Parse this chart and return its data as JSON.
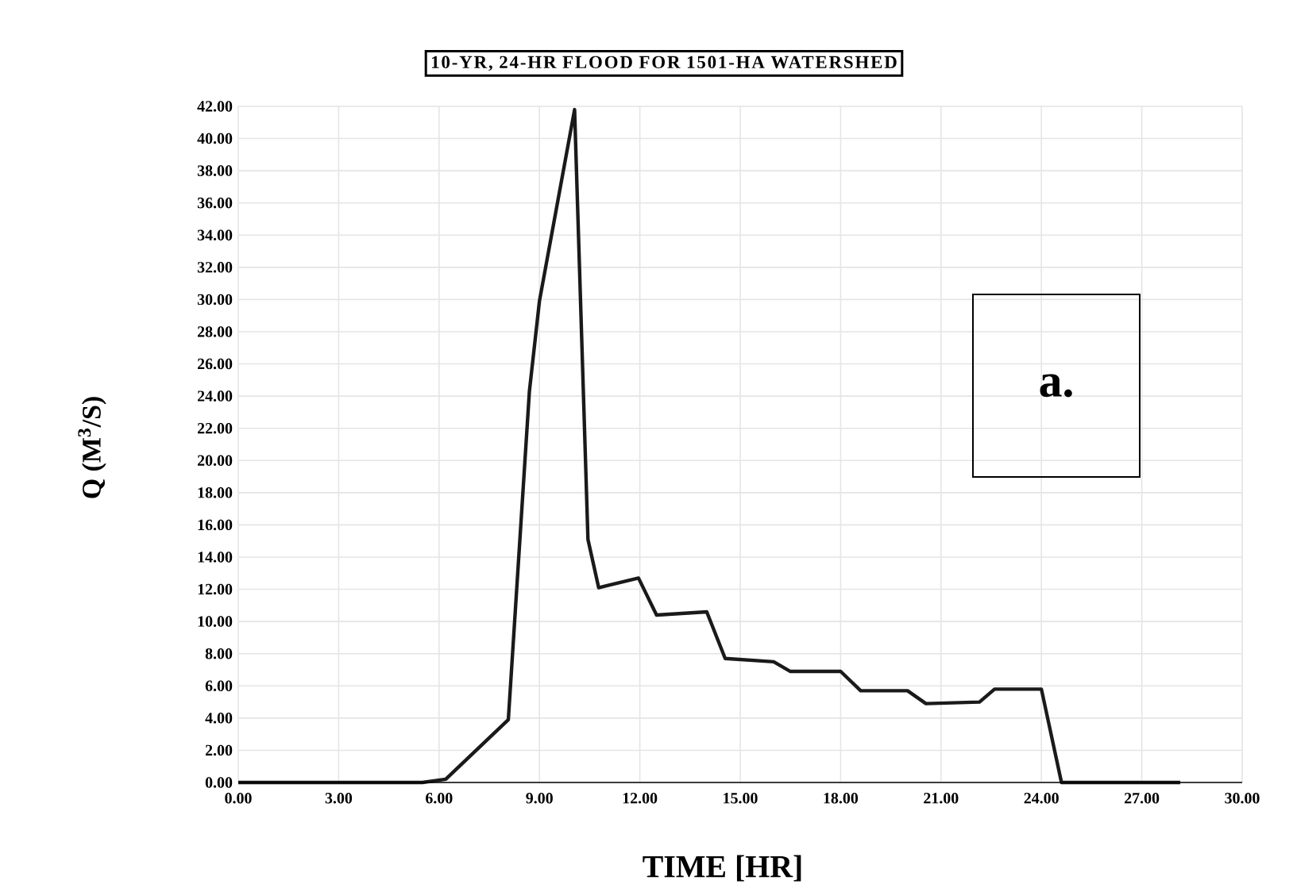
{
  "chart_data": {
    "type": "line",
    "title": "10-YR, 24-HR FLOOD FOR 1501-HA WATERSHED",
    "xlabel": "TIME [HR]",
    "ylabel": "Q (M$^{3}$/S)",
    "annotations": [
      "a."
    ],
    "x": [
      0,
      5.5,
      6.2,
      8.07,
      8.7,
      9.0,
      10.05,
      10.45,
      10.77,
      11.96,
      12.5,
      14.0,
      14.55,
      16.0,
      16.5,
      18.0,
      18.6,
      20.0,
      20.55,
      22.15,
      22.6,
      24.0,
      24.6,
      28.15
    ],
    "series": [
      {
        "color": "#1a1a1a",
        "values": [
          0,
          0,
          0.2,
          3.9,
          24.3,
          29.9,
          41.8,
          15.1,
          12.1,
          12.7,
          10.4,
          10.6,
          7.7,
          7.5,
          6.9,
          6.9,
          5.7,
          5.7,
          4.9,
          5.0,
          5.8,
          5.8,
          0,
          0
        ]
      }
    ],
    "xlim": [
      0,
      30
    ],
    "ylim": [
      0,
      42
    ],
    "xticks": [
      {
        "value": 0,
        "label": "0.00"
      },
      {
        "value": 3,
        "label": "3.00"
      },
      {
        "value": 6,
        "label": "6.00"
      },
      {
        "value": 9,
        "label": "9.00"
      },
      {
        "value": 12,
        "label": "12.00"
      },
      {
        "value": 15,
        "label": "15.00"
      },
      {
        "value": 18,
        "label": "18.00"
      },
      {
        "value": 21,
        "label": "21.00"
      },
      {
        "value": 24,
        "label": "24.00"
      },
      {
        "value": 27,
        "label": "27.00"
      },
      {
        "value": 30,
        "label": "30.00"
      }
    ],
    "yticks": [
      {
        "value": 0,
        "label": "0.00"
      },
      {
        "value": 2,
        "label": "2.00"
      },
      {
        "value": 4,
        "label": "4.00"
      },
      {
        "value": 6,
        "label": "6.00"
      },
      {
        "value": 8,
        "label": "8.00"
      },
      {
        "value": 10,
        "label": "10.00"
      },
      {
        "value": 12,
        "label": "12.00"
      },
      {
        "value": 14,
        "label": "14.00"
      },
      {
        "value": 16,
        "label": "16.00"
      },
      {
        "value": 18,
        "label": "18.00"
      },
      {
        "value": 20,
        "label": "20.00"
      },
      {
        "value": 22,
        "label": "22.00"
      },
      {
        "value": 24,
        "label": "24.00"
      },
      {
        "value": 26,
        "label": "26.00"
      },
      {
        "value": 28,
        "label": "28.00"
      },
      {
        "value": 30,
        "label": "30.00"
      },
      {
        "value": 32,
        "label": "32.00"
      },
      {
        "value": 34,
        "label": "34.00"
      },
      {
        "value": 36,
        "label": "36.00"
      },
      {
        "value": 38,
        "label": "38.00"
      },
      {
        "value": 40,
        "label": "40.00"
      },
      {
        "value": 42,
        "label": "42.00"
      }
    ],
    "grid": true,
    "marker": "none",
    "line_style": "solid"
  }
}
